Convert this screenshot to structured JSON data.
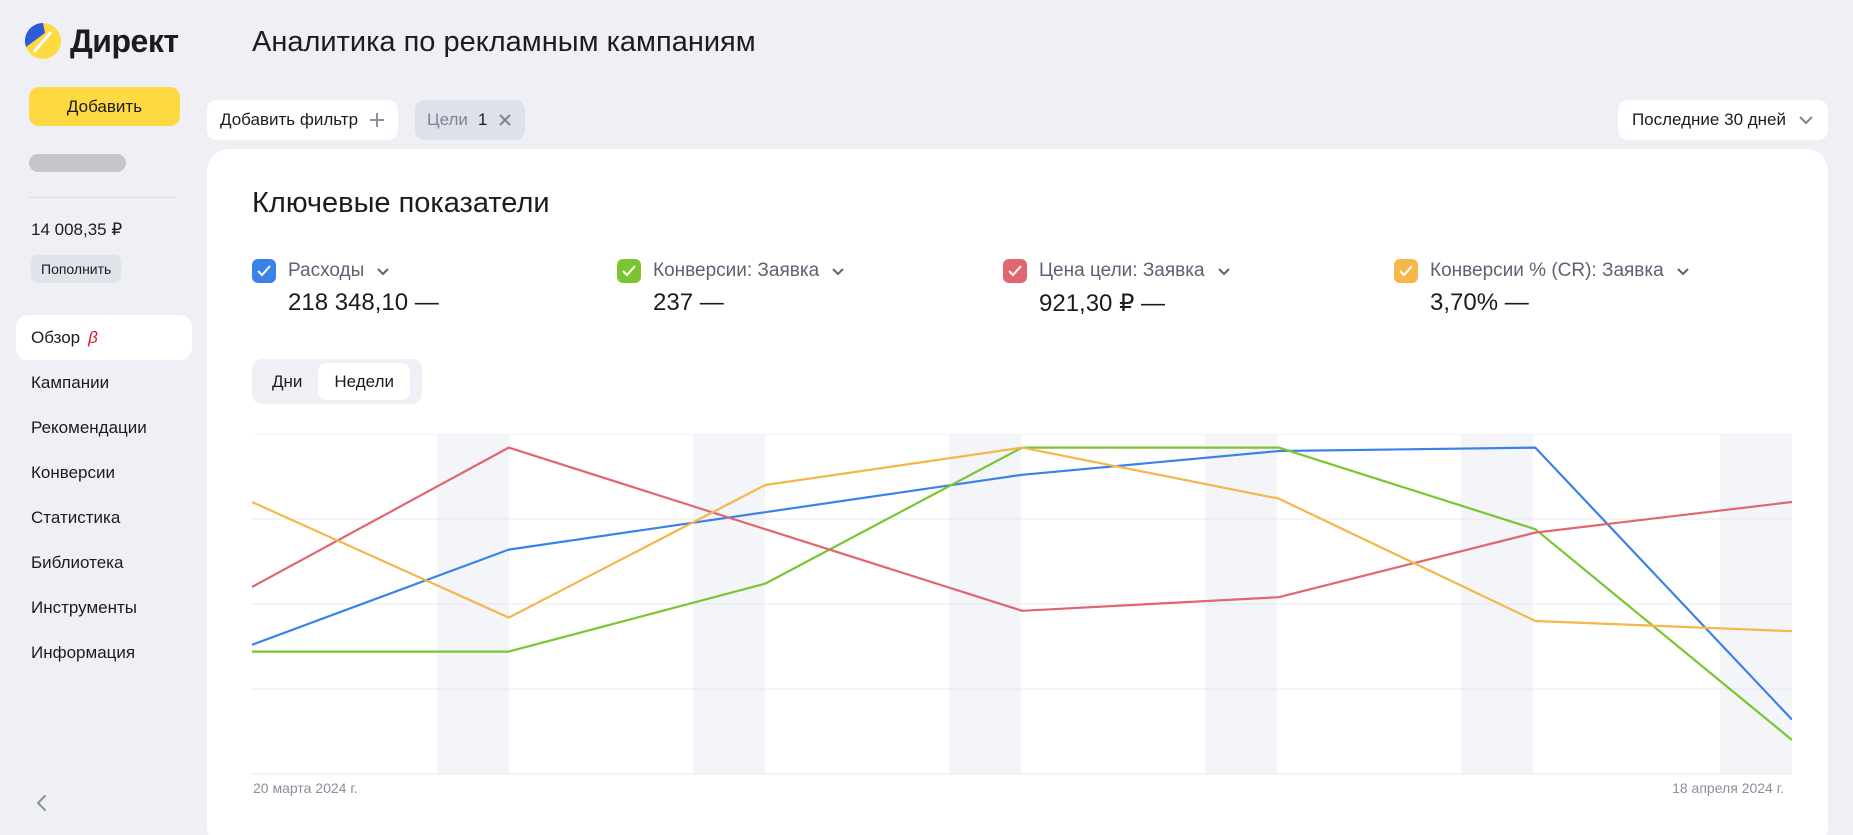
{
  "sidebar": {
    "logo_text": "Директ",
    "add_label": "Добавить",
    "balance": "14 008,35 ₽",
    "topup_label": "Пополнить",
    "nav": [
      {
        "label": "Обзор",
        "badge": "β"
      },
      {
        "label": "Кампании"
      },
      {
        "label": "Рекомендации"
      },
      {
        "label": "Конверсии"
      },
      {
        "label": "Статистика"
      },
      {
        "label": "Библиотека"
      },
      {
        "label": "Инструменты"
      },
      {
        "label": "Информация"
      }
    ],
    "icons": {
      "collapse": "chevron-left-icon"
    }
  },
  "header": {
    "title": "Аналитика по рекламным кампаниям",
    "filter_label": "Добавить фильтр",
    "goal_chip": {
      "label": "Цели",
      "count": "1"
    },
    "period_label": "Последние 30 дней"
  },
  "card": {
    "title": "Ключевые показатели",
    "metrics": [
      {
        "name": "Расходы",
        "value": "218 348,10 —",
        "color": "#3b82e8"
      },
      {
        "name": "Конверсии: Заявка",
        "value": "237 —",
        "color": "#7ac531"
      },
      {
        "name": "Цена цели: Заявка",
        "value": "921,30 ₽ —",
        "color": "#e06671"
      },
      {
        "name": "Конверсии % (CR): Заявка",
        "value": "3,70% —",
        "color": "#f5b64a"
      }
    ],
    "toggle": [
      "Дни",
      "Недели"
    ],
    "toggle_selected": "Недели"
  },
  "chart_data": {
    "type": "line",
    "x_start_label": "20 марта 2024 г.",
    "x_end_label": "18 апреля 2024 г.",
    "y_axis": "normalized per series, no tick labels shown",
    "ylim": [
      0,
      100
    ],
    "grid": true,
    "series": [
      {
        "name": "Расходы",
        "color": "#3b82e8",
        "values": [
          38,
          66,
          77,
          88,
          95,
          96,
          16
        ]
      },
      {
        "name": "Конверсии: Заявка",
        "color": "#7ac531",
        "values": [
          36,
          36,
          56,
          96,
          96,
          72,
          10
        ]
      },
      {
        "name": "Цена цели: Заявка",
        "color": "#e06671",
        "values": [
          55,
          96,
          72,
          48,
          52,
          71,
          80
        ]
      },
      {
        "name": "Конверсии % (CR): Заявка",
        "color": "#f5b64a",
        "values": [
          80,
          46,
          85,
          96,
          81,
          45,
          42
        ]
      }
    ]
  }
}
